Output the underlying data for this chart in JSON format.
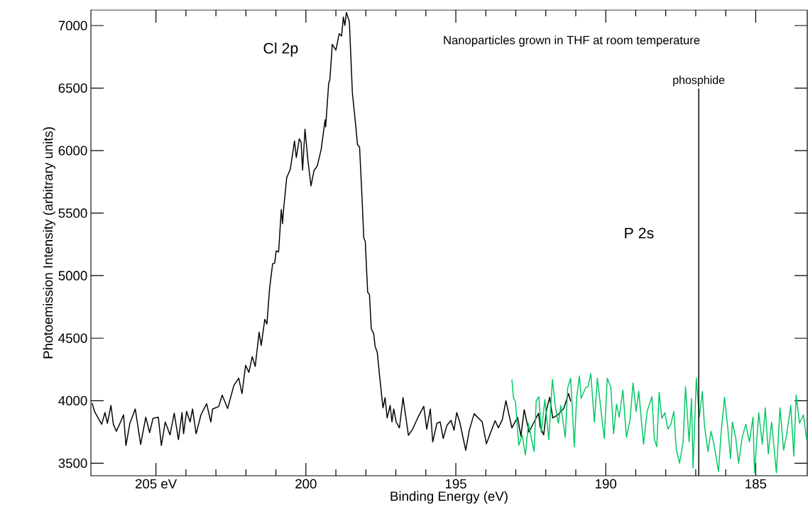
{
  "chart_data": {
    "type": "line",
    "xlabel": "Binding Energy (eV)",
    "ylabel": "Photoemission Intensity (arbitrary units)",
    "xlim": [
      207.17,
      183.28
    ],
    "ylim": [
      3400,
      7125
    ],
    "xticks": [
      {
        "value": 205,
        "label": "205 eV"
      },
      200,
      195,
      190,
      185
    ],
    "yticks": [
      3500,
      4000,
      4500,
      5000,
      5500,
      6000,
      6500,
      7000
    ],
    "annotations": [
      "Nanoparticles grown in THF at room temperature",
      "Cl 2p",
      "P 2s"
    ],
    "ref_lines": [
      {
        "axis": "x",
        "value": 186.9,
        "label": "phosphide",
        "color": "#000000"
      }
    ],
    "series": [
      {
        "color": "#000000",
        "x": [
          207.13,
          207.05,
          206.81,
          206.7,
          206.62,
          206.5,
          206.42,
          206.32,
          206.18,
          206.08,
          206.0,
          205.87,
          205.69,
          205.51,
          205.34,
          205.21,
          205.1,
          204.92,
          204.82,
          204.69,
          204.53,
          204.39,
          204.25,
          204.13,
          204.08,
          203.98,
          203.86,
          203.78,
          203.66,
          203.5,
          203.31,
          203.17,
          203.11,
          202.91,
          202.79,
          202.61,
          202.4,
          202.24,
          202.13,
          202.01,
          201.9,
          201.79,
          201.69,
          201.56,
          201.49,
          201.37,
          201.3,
          201.21,
          201.11,
          201.04,
          200.99,
          200.91,
          200.82,
          200.78,
          200.74,
          200.64,
          200.52,
          200.38,
          200.32,
          200.22,
          200.16,
          200.11,
          200.03,
          199.93,
          199.83,
          199.73,
          199.62,
          199.49,
          199.36,
          199.34,
          199.24,
          199.2,
          199.12,
          199.0,
          198.89,
          198.81,
          198.75,
          198.7,
          198.65,
          198.55,
          198.45,
          198.33,
          198.28,
          198.21,
          198.13,
          198.07,
          198.02,
          197.94,
          197.88,
          197.82,
          197.74,
          197.69,
          197.62,
          197.55,
          197.43,
          197.36,
          197.29,
          197.19,
          197.13,
          197.07,
          196.99,
          196.88,
          196.76,
          196.58,
          196.44,
          196.26,
          196.07,
          195.97,
          195.85,
          195.77,
          195.63,
          195.52,
          195.42,
          195.3,
          195.16,
          195.06,
          194.97,
          194.87,
          194.67,
          194.55,
          194.39,
          194.12,
          193.98,
          193.84,
          193.69,
          193.58,
          193.45,
          193.33,
          193.13,
          192.94,
          192.83,
          192.72,
          192.56,
          192.39,
          192.24,
          192.19,
          192.07,
          191.97,
          191.87,
          191.77,
          191.6,
          191.4,
          191.24,
          191.17
        ],
        "values": [
          3981,
          3915,
          3811,
          3905,
          3820,
          3962,
          3811,
          3755,
          3830,
          3887,
          3642,
          3820,
          3934,
          3651,
          3868,
          3745,
          3858,
          3868,
          3642,
          3830,
          3727,
          3900,
          3689,
          3905,
          3736,
          3915,
          3830,
          3934,
          3736,
          3887,
          3976,
          3830,
          3934,
          3953,
          4044,
          3938,
          4123,
          4180,
          4057,
          4283,
          4227,
          4353,
          4274,
          4548,
          4443,
          4651,
          4613,
          4897,
          5095,
          5100,
          5199,
          5189,
          5529,
          5416,
          5539,
          5784,
          5850,
          6077,
          5944,
          6095,
          6067,
          5844,
          6171,
          5916,
          5718,
          5840,
          5878,
          6010,
          6246,
          6190,
          6539,
          6567,
          6850,
          6803,
          6935,
          6916,
          7068,
          7001,
          7105,
          7030,
          6464,
          6180,
          6048,
          6029,
          5633,
          5302,
          5274,
          4868,
          4849,
          4576,
          4538,
          4434,
          4387,
          4217,
          3943,
          4024,
          3862,
          3962,
          3830,
          3934,
          3830,
          3783,
          4024,
          3723,
          3773,
          3868,
          3956,
          3773,
          3934,
          3670,
          3820,
          3830,
          3698,
          3802,
          3843,
          3764,
          3905,
          3830,
          3604,
          3764,
          3896,
          3830,
          3655,
          3745,
          3840,
          3783,
          3849,
          4000,
          3783,
          3868,
          3717,
          3928,
          3749,
          3830,
          3900,
          3792,
          3727,
          3934,
          4028,
          3862,
          3887,
          3938,
          4057,
          3994
        ]
      },
      {
        "color": "#00c864",
        "x": [
          193.13,
          193.08,
          193.01,
          192.9,
          192.79,
          192.68,
          192.58,
          192.48,
          192.39,
          192.32,
          192.23,
          192.15,
          192.03,
          191.9,
          191.78,
          191.68,
          191.58,
          191.5,
          191.35,
          191.27,
          191.17,
          191.05,
          190.97,
          190.88,
          190.82,
          190.67,
          190.59,
          190.5,
          190.38,
          190.28,
          190.19,
          190.05,
          189.95,
          189.83,
          189.74,
          189.64,
          189.55,
          189.43,
          189.31,
          189.19,
          189.09,
          188.99,
          188.9,
          188.74,
          188.62,
          188.46,
          188.38,
          188.3,
          188.22,
          188.13,
          188.03,
          187.93,
          187.83,
          187.73,
          187.65,
          187.54,
          187.42,
          187.34,
          187.22,
          187.14,
          187.09,
          186.98,
          186.88,
          186.78,
          186.71,
          186.59,
          186.49,
          186.39,
          186.24,
          186.16,
          186.04,
          185.92,
          185.84,
          185.78,
          185.67,
          185.57,
          185.45,
          185.33,
          185.21,
          185.09,
          185.04,
          184.9,
          184.78,
          184.68,
          184.58,
          184.47,
          184.31,
          184.19,
          184.07,
          183.97,
          183.83,
          183.73,
          183.65,
          183.54,
          183.41,
          183.3
        ],
        "values": [
          4170,
          4028,
          3990,
          3642,
          3727,
          3566,
          3820,
          3698,
          3594,
          4000,
          4032,
          3745,
          4010,
          3689,
          4170,
          3953,
          3820,
          3962,
          3707,
          4104,
          4180,
          3632,
          4028,
          4198,
          4019,
          4104,
          4113,
          4217,
          3830,
          4180,
          3990,
          3698,
          4180,
          4104,
          3736,
          3972,
          3868,
          4085,
          3707,
          3849,
          4142,
          3915,
          4075,
          3651,
          3915,
          4032,
          3689,
          3632,
          4066,
          3858,
          3905,
          3773,
          3811,
          3915,
          3613,
          3500,
          3670,
          4113,
          3670,
          4019,
          3462,
          4180,
          3868,
          4075,
          3802,
          3594,
          3755,
          3651,
          3434,
          3727,
          4028,
          3755,
          3537,
          3830,
          3707,
          3500,
          3707,
          3811,
          3670,
          3868,
          3424,
          3905,
          3651,
          3943,
          3575,
          3830,
          3424,
          3943,
          3604,
          3727,
          3962,
          3557,
          4044,
          3820,
          3887,
          3689
        ]
      }
    ]
  }
}
